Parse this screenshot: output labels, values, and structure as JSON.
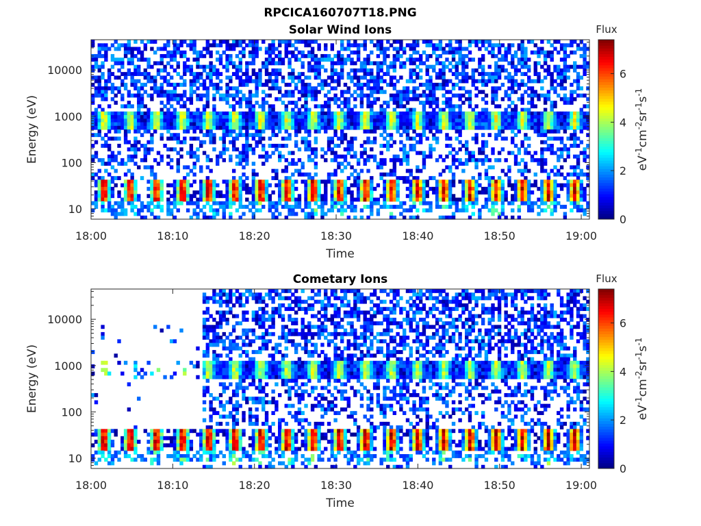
{
  "figure_title": "RPCICA160707T18.PNG",
  "chart_data": [
    {
      "type": "heatmap",
      "title": "Solar Wind Ions",
      "xlabel": "Time",
      "ylabel": "Energy (eV)",
      "x_ticks": [
        "18:00",
        "18:10",
        "18:20",
        "18:30",
        "18:40",
        "18:50",
        "19:00"
      ],
      "x_range": [
        "18:00",
        "19:01"
      ],
      "y_scale": "log",
      "y_ticks": [
        "10",
        "100",
        "1000",
        "10000"
      ],
      "y_range": [
        6,
        45000
      ],
      "colorbar": {
        "title": "Flux",
        "label": "eV-1cm-2sr-1s-1",
        "range": [
          0,
          7.4
        ],
        "ticks": [
          "0",
          "2",
          "4",
          "6"
        ],
        "colormap": "jet"
      },
      "features": {
        "scan_period_min": 3.2,
        "low_energy_band_eV": [
          15,
          40
        ],
        "low_energy_peak_flux": 6.5,
        "mid_energy_band_eV": [
          500,
          1200
        ],
        "mid_energy_peak_flux": 3.8,
        "background_flux": 0.8,
        "early_cutoff_min": 0
      }
    },
    {
      "type": "heatmap",
      "title": "Cometary Ions",
      "xlabel": "Time",
      "ylabel": "Energy (eV)",
      "x_ticks": [
        "18:00",
        "18:10",
        "18:20",
        "18:30",
        "18:40",
        "18:50",
        "19:00"
      ],
      "x_range": [
        "18:00",
        "19:01"
      ],
      "y_scale": "log",
      "y_ticks": [
        "10",
        "100",
        "1000",
        "10000"
      ],
      "y_range": [
        6,
        45000
      ],
      "colorbar": {
        "title": "Flux",
        "label": "eV-1cm-2sr-1s-1",
        "range": [
          0,
          7.4
        ],
        "ticks": [
          "0",
          "2",
          "4",
          "6"
        ],
        "colormap": "jet"
      },
      "features": {
        "scan_period_min": 3.2,
        "low_energy_band_eV": [
          15,
          40
        ],
        "low_energy_peak_flux": 6.8,
        "mid_energy_band_eV": [
          500,
          1200
        ],
        "mid_energy_peak_flux": 3.6,
        "background_flux": 0.8,
        "early_cutoff_min": 13.5
      }
    }
  ]
}
